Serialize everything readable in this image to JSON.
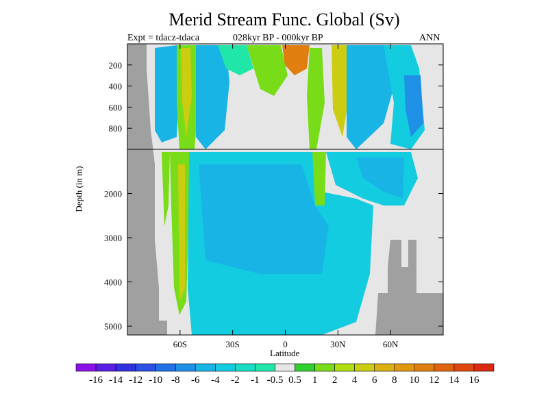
{
  "chart_data": {
    "type": "heatmap",
    "title": "Merid Stream Func. Global (Sv)",
    "experiment": "Expt = tdacz-tdaca",
    "period": "028kyr BP - 000kyr BP",
    "season": "ANN",
    "xlabel": "Latitude",
    "ylabel": "Depth (in m)",
    "xlim": [
      -90,
      90
    ],
    "x_ticks": [
      {
        "value": -60,
        "label": "60S"
      },
      {
        "value": -30,
        "label": "30S"
      },
      {
        "value": 0,
        "label": "0"
      },
      {
        "value": 30,
        "label": "30N"
      },
      {
        "value": 60,
        "label": "60N"
      }
    ],
    "y_ticks_upper": [
      {
        "value": 200,
        "label": "200"
      },
      {
        "value": 400,
        "label": "400"
      },
      {
        "value": 600,
        "label": "600"
      },
      {
        "value": 800,
        "label": "800"
      }
    ],
    "y_ticks_lower": [
      {
        "value": 2000,
        "label": "2000"
      },
      {
        "value": 3000,
        "label": "3000"
      },
      {
        "value": 4000,
        "label": "4000"
      },
      {
        "value": 5000,
        "label": "5000"
      }
    ],
    "ylim_upper": [
      0,
      1000
    ],
    "ylim_lower": [
      1000,
      5200
    ],
    "colorbar": {
      "labels": [
        "-16",
        "-14",
        "-12",
        "-10",
        "-8",
        "-6",
        "-4",
        "-2",
        "-1",
        "-0.5",
        "0.5",
        "1",
        "2",
        "4",
        "6",
        "8",
        "10",
        "12",
        "14",
        "16"
      ],
      "colors": [
        "#8a12e8",
        "#5a1ee6",
        "#3030e0",
        "#2a50e6",
        "#2270e6",
        "#1e90e6",
        "#18b4e6",
        "#14cce0",
        "#18dcc4",
        "#20e6a8",
        "#e6e6e6",
        "#30d030",
        "#78dc18",
        "#b0dc10",
        "#cccc10",
        "#dcb010",
        "#e09810",
        "#e07e10",
        "#e06410",
        "#e04810",
        "#dc2810"
      ]
    },
    "field_description_regions": [
      {
        "lat": [
          -72,
          -50
        ],
        "depth": [
          0,
          1000
        ],
        "value": -3,
        "note": "upper ocean southern band"
      },
      {
        "lat": [
          -62,
          -56
        ],
        "depth": [
          0,
          4500
        ],
        "value": 3,
        "note": "southern positive band"
      },
      {
        "lat": [
          -48,
          50
        ],
        "depth": [
          1000,
          5200
        ],
        "value": -3,
        "note": "deep negative cell"
      },
      {
        "lat": [
          20,
          35
        ],
        "depth": [
          0,
          1000
        ],
        "value": 6,
        "note": "northern positive upper band"
      },
      {
        "lat": [
          35,
          80
        ],
        "depth": [
          0,
          1500
        ],
        "value": -3,
        "note": "northern negative upper cell"
      }
    ]
  }
}
